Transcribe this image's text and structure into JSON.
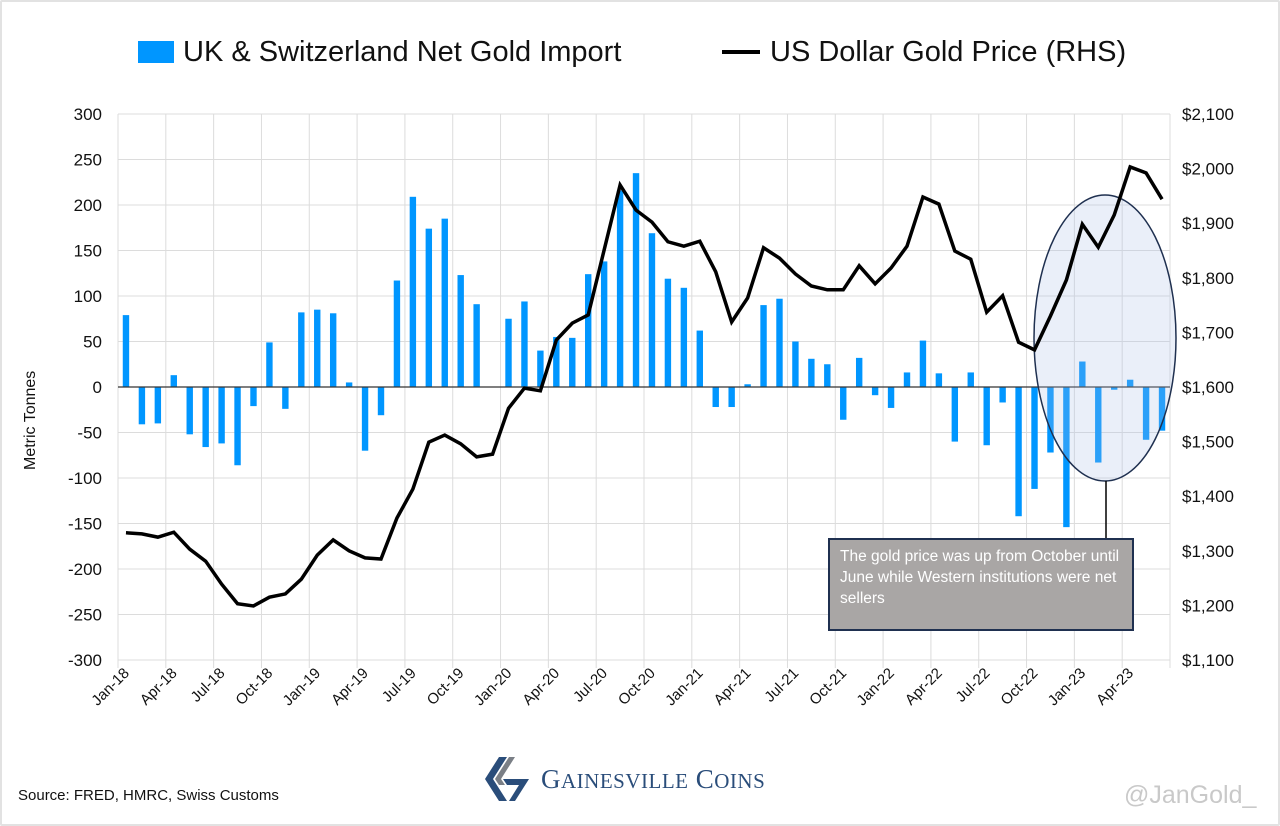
{
  "chart_data": {
    "type": "bar+line",
    "categories": [
      "Jan-18",
      "Feb-18",
      "Mar-18",
      "Apr-18",
      "May-18",
      "Jun-18",
      "Jul-18",
      "Aug-18",
      "Sep-18",
      "Oct-18",
      "Nov-18",
      "Dec-18",
      "Jan-19",
      "Feb-19",
      "Mar-19",
      "Apr-19",
      "May-19",
      "Jun-19",
      "Jul-19",
      "Aug-19",
      "Sep-19",
      "Oct-19",
      "Nov-19",
      "Dec-19",
      "Jan-20",
      "Feb-20",
      "Mar-20",
      "Apr-20",
      "May-20",
      "Jun-20",
      "Jul-20",
      "Aug-20",
      "Sep-20",
      "Oct-20",
      "Nov-20",
      "Dec-20",
      "Jan-21",
      "Feb-21",
      "Mar-21",
      "Apr-21",
      "May-21",
      "Jun-21",
      "Jul-21",
      "Aug-21",
      "Sep-21",
      "Oct-21",
      "Nov-21",
      "Dec-21",
      "Jan-22",
      "Feb-22",
      "Mar-22",
      "Apr-22",
      "May-22",
      "Jun-22",
      "Jul-22",
      "Aug-22",
      "Sep-22",
      "Oct-22",
      "Nov-22",
      "Dec-22",
      "Jan-23",
      "Feb-23",
      "Mar-23",
      "Apr-23",
      "May-23",
      "Jun-23"
    ],
    "series": [
      {
        "name": "UK & Switzerland Net Gold Import",
        "type": "bar",
        "axis": "left",
        "color": "#0096ff",
        "values": [
          79,
          -41,
          -40,
          13,
          -52,
          -66,
          -62,
          -86,
          -21,
          49,
          -24,
          82,
          85,
          81,
          5,
          -70,
          -31,
          117,
          209,
          174,
          185,
          123,
          91,
          0,
          75,
          94,
          40,
          55,
          54,
          124,
          138,
          216,
          235,
          169,
          119,
          109,
          62,
          -22,
          -22,
          3,
          90,
          97,
          50,
          31,
          25,
          -36,
          32,
          -9,
          -23,
          16,
          51,
          15,
          -60,
          16,
          -64,
          -17,
          -142,
          -112,
          -72,
          -154,
          28,
          -83,
          -3,
          8,
          -58,
          -48
        ]
      },
      {
        "name": "US Dollar Gold Price (RHS)",
        "type": "line",
        "axis": "right",
        "color": "#000000",
        "values": [
          1333,
          1331,
          1325,
          1334,
          1303,
          1281,
          1239,
          1203,
          1199,
          1215,
          1221,
          1248,
          1292,
          1320,
          1300,
          1287,
          1285,
          1360,
          1413,
          1499,
          1512,
          1496,
          1472,
          1477,
          1561,
          1598,
          1593,
          1686,
          1717,
          1732,
          1851,
          1970,
          1924,
          1902,
          1866,
          1858,
          1867,
          1811,
          1719,
          1763,
          1855,
          1836,
          1807,
          1785,
          1778,
          1778,
          1822,
          1789,
          1818,
          1858,
          1948,
          1935,
          1849,
          1834,
          1737,
          1767,
          1682,
          1668,
          1730,
          1796,
          1898,
          1856,
          1915,
          2003,
          1992,
          1944
        ]
      }
    ],
    "ylabel": "Metric Tonnes",
    "ylim": [
      -300,
      300
    ],
    "y2lim": [
      1100,
      2100
    ],
    "y_ticks": [
      "300",
      "250",
      "200",
      "150",
      "100",
      "50",
      "0",
      "-50",
      "-100",
      "-150",
      "-200",
      "-250",
      "-300"
    ],
    "y2_ticks": [
      "$2,100",
      "$2,000",
      "$1,900",
      "$1,800",
      "$1,700",
      "$1,600",
      "$1,500",
      "$1,400",
      "$1,300",
      "$1,200",
      "$1,100"
    ],
    "x_ticks": [
      "Jan-18",
      "Apr-18",
      "Jul-18",
      "Oct-18",
      "Jan-19",
      "Apr-19",
      "Jul-19",
      "Oct-19",
      "Jan-20",
      "Apr-20",
      "Jul-20",
      "Oct-20",
      "Jan-21",
      "Apr-21",
      "Jul-21",
      "Oct-21",
      "Jan-22",
      "Apr-22",
      "Jul-22",
      "Oct-22",
      "Jan-23",
      "Apr-23"
    ],
    "grid": true,
    "legend_position": "top",
    "annotation": "The gold price was up from October until June while Western institutions were net sellers"
  },
  "legend": {
    "bar_label": "UK & Switzerland Net Gold Import",
    "line_label": "US Dollar Gold Price (RHS)"
  },
  "footer": {
    "source": "Source: FRED, HMRC, Swiss Customs",
    "logo_text": "Gainesville Coins",
    "handle": "@JanGold_"
  }
}
